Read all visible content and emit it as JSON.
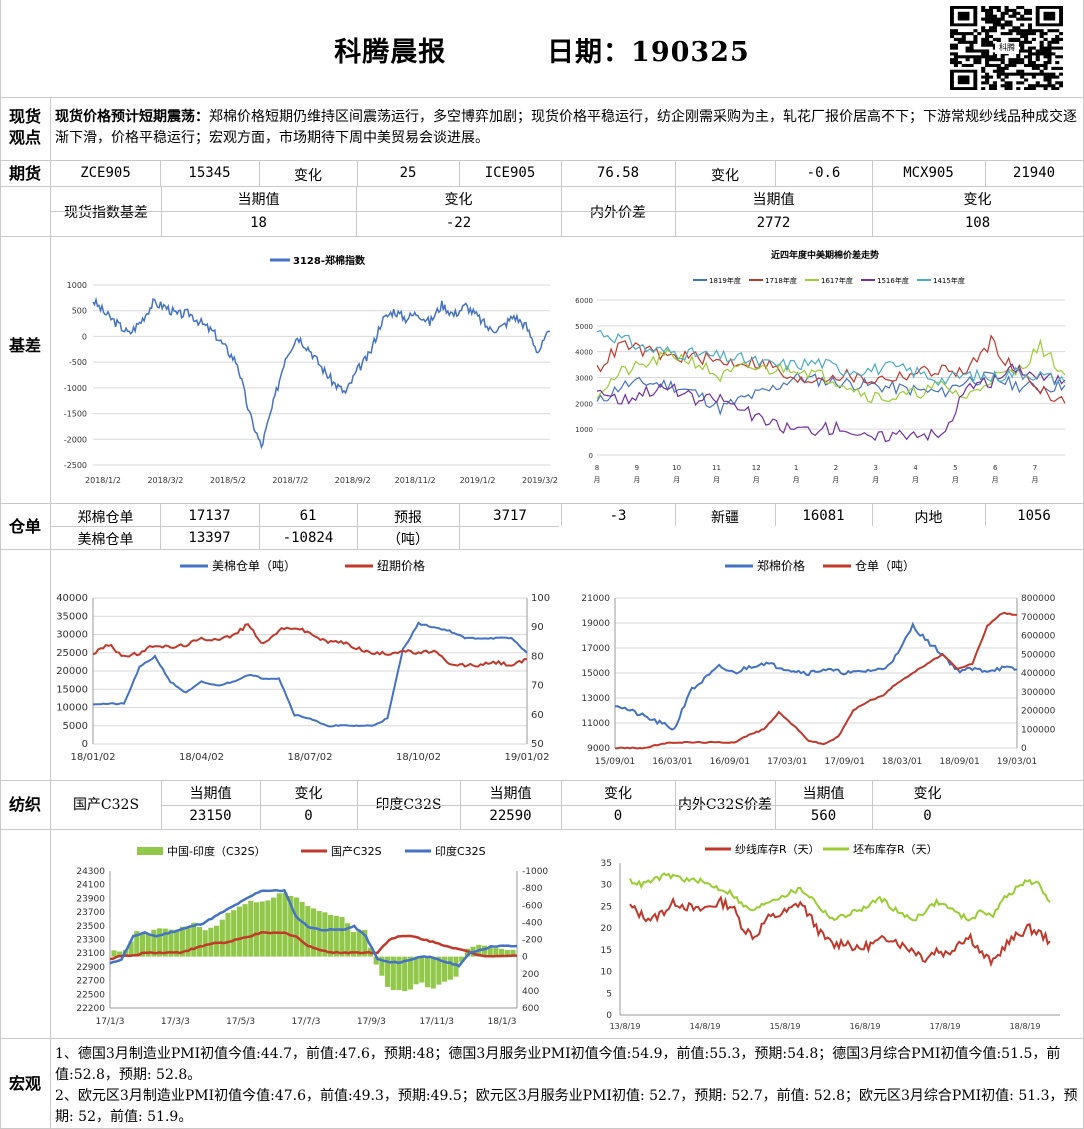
{
  "header": {
    "title": "科腾晨报",
    "date_label": "日期：190325",
    "qr_logo_text": "科腾"
  },
  "spot": {
    "section_label": "现货\n观点",
    "headline": "现货价格预计短期震荡：",
    "body": "郑棉价格短期仍维持区间震荡运行，多空博弈加剧；现货价格平稳运行，纺企刚需采购为主，轧花厂报价居高不下；下游常规纱线品种成交逐渐下滑，价格平稳运行；宏观方面，市场期待下周中美贸易会谈进展。"
  },
  "futures": {
    "section_label": "期货",
    "row": [
      "ZCE905",
      "15345",
      "变化",
      "25",
      "ICE905",
      "76.58",
      "变化",
      "-0.6",
      "MCX905",
      "21940"
    ]
  },
  "basis": {
    "section_label": "基差",
    "spot_index_label": "现货指数基差",
    "current_label": "当期值",
    "change_label": "变化",
    "spot_current": "18",
    "spot_change": "-22",
    "in_out_label": "内外价差",
    "io_current_label": "当期值",
    "io_change_label": "变化",
    "io_current": "2772",
    "io_change": "108"
  },
  "warehouse": {
    "section_label": "仓单",
    "zce_label": "郑棉仓单",
    "zce_value": "17137",
    "zce_change": "61",
    "forecast_label": "预报",
    "forecast_value": "3717",
    "forecast_change": "-3",
    "xinjiang_label": "新疆",
    "xinjiang_value": "16081",
    "inland_label": "内地",
    "inland_value": "1056",
    "us_label": "美棉仓单",
    "us_value": "13397",
    "us_change": "-10824",
    "unit_label": "（吨）"
  },
  "textile": {
    "section_label": "纺织",
    "domestic_label": "国产C32S",
    "current_label": "当期值",
    "change_label": "变化",
    "domestic_value": "23150",
    "domestic_change": "0",
    "india_label": "印度C32S",
    "india_value": "22590",
    "india_change": "0",
    "spread_label": "内外C32S价差",
    "spread_value": "560",
    "spread_change": "0"
  },
  "macro": {
    "section_label": "宏观",
    "line1": "1、德国3月制造业PMI初值今值:44.7，前值:47.6，预期:48；德国3月服务业PMI初值今值:54.9，前值:55.3，预期:54.8；德国3月综合PMI初值今值:51.5，前值:52.8，预期: 52.8。",
    "line2": "2、欧元区3月制造业PMI初值今值:47.6，前值:49.3，预期:49.5；欧元区3月服务业PMI初值: 52.7，预期: 52.7，前值: 52.8；欧元区3月综合PMI初值: 51.3，预期: 52，前值: 51.9。"
  },
  "colors": {
    "blue": "#4472c4",
    "red": "#c0392b",
    "green": "#9acd32",
    "purple": "#7030a0",
    "cyan": "#4bacc6",
    "grid": "#d9d9d9"
  },
  "chart_data": [
    {
      "type": "line",
      "title": "",
      "series": [
        {
          "name": "3128-郑棉指数",
          "values": [
            700,
            450,
            250,
            50,
            300,
            650,
            580,
            420,
            450,
            260,
            80,
            -220,
            -520,
            -1500,
            -2150,
            -1300,
            -400,
            0,
            -250,
            -600,
            -900,
            -1100,
            -650,
            -350,
            300,
            500,
            350,
            460,
            270,
            620,
            420,
            600,
            380,
            130,
            180,
            400,
            200,
            -300,
            100
          ]
        }
      ],
      "x_tick_labels": [
        "2018/1/2",
        "2018/3/2",
        "2018/5/2",
        "2018/7/2",
        "2018/9/2",
        "2018/11/2",
        "2019/1/2",
        "2019/3/2"
      ],
      "ylim": [
        -2500,
        1000
      ],
      "y_ticks": [
        "1000",
        "500",
        "0",
        "-500",
        "-1000",
        "-1500",
        "-2000",
        "-2500"
      ],
      "legend": "top-center",
      "legend_text": "3128-郑棉指数"
    },
    {
      "type": "line",
      "title": "近四年度中美期棉价差走势",
      "series": [
        {
          "name": "1819年度",
          "values": [
            2000,
            2700,
            2800,
            2700,
            2400,
            1800,
            2200,
            2500,
            3000,
            2900,
            2800,
            2700,
            2600,
            2500,
            2400,
            2900,
            3000,
            2700,
            2600,
            2700
          ]
        },
        {
          "name": "1718年度",
          "values": [
            3300,
            4300,
            4000,
            3800,
            3800,
            3600,
            3600,
            3500,
            2800,
            3000,
            3100,
            2900,
            3000,
            3200,
            3300,
            3200,
            4400,
            3200,
            2600,
            2000
          ]
        },
        {
          "name": "1617年度",
          "values": [
            2400,
            3200,
            3500,
            3900,
            3600,
            3000,
            3400,
            3300,
            3400,
            3100,
            2800,
            2300,
            2200,
            2400,
            2700,
            2200,
            3000,
            3200,
            4200,
            3100
          ]
        },
        {
          "name": "1516年度",
          "values": [
            2600,
            2100,
            2500,
            2600,
            2100,
            2200,
            1700,
            1200,
            1000,
            1000,
            1100,
            600,
            800,
            900,
            700,
            2600,
            2800,
            3400,
            3000,
            2900
          ]
        },
        {
          "name": "1415年度",
          "values": [
            4800,
            4500,
            4100,
            4000,
            3900,
            3800,
            3700,
            3500,
            3500,
            3600,
            3300,
            3300,
            3400,
            3200,
            2900,
            3100,
            3000,
            3200,
            3100,
            2800
          ]
        }
      ],
      "x_tick_labels": [
        "8\n月",
        "9\n月",
        "10\n月",
        "11\n月",
        "12\n月",
        "1\n月",
        "2\n月",
        "3\n月",
        "4\n月",
        "5\n月",
        "6\n月",
        "7\n月"
      ],
      "ylim": [
        0,
        6000
      ],
      "y_ticks": [
        "6000",
        "5000",
        "4000",
        "3000",
        "2000",
        "1000",
        "0"
      ],
      "legend": "top"
    },
    {
      "type": "line",
      "title": "",
      "series": [
        {
          "name": "美棉仓单（吨）",
          "axis": "left",
          "values": [
            11000,
            11000,
            11000,
            21000,
            24000,
            17000,
            14000,
            17000,
            16000,
            17000,
            19000,
            18000,
            18000,
            8000,
            7000,
            5000,
            5000,
            5000,
            5000,
            7000,
            26000,
            33000,
            32000,
            31000,
            29000,
            29000,
            29000,
            29000,
            25000
          ]
        },
        {
          "name": "纽期价格",
          "axis": "right",
          "values": [
            81,
            84,
            80,
            81,
            84,
            83,
            84,
            86,
            86,
            87,
            91,
            84,
            89,
            90,
            88,
            85,
            85,
            83,
            81,
            81,
            82,
            81,
            82,
            77,
            77,
            77,
            78,
            77,
            79
          ]
        }
      ],
      "x_tick_labels": [
        "18/01/02",
        "18/04/02",
        "18/07/02",
        "18/10/02",
        "19/01/02"
      ],
      "ylim": [
        0,
        40000
      ],
      "y2lim": [
        50,
        100
      ],
      "y_ticks": [
        "40000",
        "35000",
        "30000",
        "25000",
        "20000",
        "15000",
        "10000",
        "5000",
        "0"
      ],
      "y2_ticks": [
        "100",
        "90",
        "80",
        "70",
        "60",
        "50"
      ],
      "legend": "top"
    },
    {
      "type": "line",
      "title": "",
      "series": [
        {
          "name": "郑棉价格",
          "axis": "left",
          "values": [
            12500,
            12000,
            11500,
            11000,
            10500,
            13500,
            14500,
            15500,
            15000,
            15500,
            15800,
            15500,
            15200,
            15000,
            15300,
            15100,
            15000,
            15200,
            15300,
            16500,
            18800,
            17500,
            16500,
            15200,
            15300,
            15200,
            15400,
            15300
          ]
        },
        {
          "name": "仓单（吨）",
          "axis": "right",
          "values": [
            0,
            0,
            0,
            20000,
            30000,
            30000,
            30000,
            30000,
            30000,
            70000,
            100000,
            190000,
            120000,
            40000,
            20000,
            60000,
            200000,
            250000,
            280000,
            350000,
            400000,
            450000,
            500000,
            420000,
            450000,
            650000,
            720000,
            710000
          ]
        }
      ],
      "x_tick_labels": [
        "15/09/01",
        "16/03/01",
        "16/09/01",
        "17/03/01",
        "17/09/01",
        "18/03/01",
        "18/09/01",
        "19/03/01"
      ],
      "ylim": [
        9000,
        21000
      ],
      "y2lim": [
        0,
        800000
      ],
      "y_ticks": [
        "21000",
        "19000",
        "17000",
        "15000",
        "13000",
        "11000",
        "9000"
      ],
      "y2_ticks": [
        "800000",
        "700000",
        "600000",
        "500000",
        "400000",
        "300000",
        "200000",
        "100000",
        "0"
      ],
      "legend": "top"
    },
    {
      "type": "bar",
      "title": "",
      "series": [
        {
          "name": "中国-印度（C32S）",
          "axis": "right",
          "values": [
            -70,
            -80,
            -300,
            -250,
            -350,
            -300,
            -350,
            -380,
            -320,
            -350,
            -500,
            -600,
            -650,
            -650,
            -700,
            -750,
            -700,
            -600,
            -550,
            -500,
            -450,
            -300,
            -300,
            100,
            350,
            400,
            380,
            300,
            380,
            300,
            250,
            -100,
            -150,
            -120,
            -100,
            -80
          ]
        },
        {
          "name": "国产C32S",
          "axis": "left",
          "values": [
            22950,
            23000,
            23000,
            23050,
            23050,
            23050,
            23050,
            23100,
            23150,
            23200,
            23200,
            23250,
            23300,
            23350,
            23350,
            23350,
            23300,
            23150,
            23100,
            23050,
            23050,
            23050,
            23050,
            23050,
            23250,
            23300,
            23300,
            23250,
            23200,
            23150,
            23100,
            23050,
            23000,
            23000,
            23000,
            23000
          ]
        },
        {
          "name": "印度C32S",
          "axis": "left",
          "values": [
            22880,
            22950,
            23300,
            23350,
            23300,
            23350,
            23400,
            23450,
            23500,
            23600,
            23700,
            23800,
            23900,
            24000,
            24000,
            24000,
            23600,
            23450,
            23400,
            23400,
            23400,
            23450,
            23300,
            22950,
            22900,
            22900,
            22950,
            23000,
            22950,
            22900,
            22850,
            23050,
            23100,
            23150,
            23150,
            23150
          ]
        }
      ],
      "x_tick_labels": [
        "17/1/3",
        "17/3/3",
        "17/5/3",
        "17/7/3",
        "17/9/3",
        "17/11/3",
        "18/1/3"
      ],
      "ylim": [
        22200,
        24300
      ],
      "y2lim": [
        -1000,
        600
      ],
      "y_ticks": [
        "24300",
        "24100",
        "23900",
        "23700",
        "23500",
        "23300",
        "23100",
        "22900",
        "22700",
        "22500",
        "22200"
      ],
      "y2_ticks": [
        "-1000",
        "-800",
        "-600",
        "-400",
        "-200",
        "0",
        "200",
        "400",
        "600"
      ],
      "legend": "top"
    },
    {
      "type": "line",
      "title": "",
      "series": [
        {
          "name": "纱线库存R（天）",
          "values": [
            25,
            23,
            22,
            24,
            26,
            25,
            24,
            25,
            26,
            25,
            20,
            18,
            22,
            23,
            24,
            26,
            22,
            18,
            16,
            17,
            15,
            16,
            17,
            18,
            16,
            15,
            13,
            15,
            14,
            17,
            18,
            14,
            12,
            16,
            18,
            20,
            19,
            17
          ]
        },
        {
          "name": "坯布库存R（天）",
          "values": [
            31,
            30,
            31,
            32,
            32,
            31,
            31,
            30,
            29,
            28,
            25,
            24,
            26,
            27,
            28,
            29,
            27,
            24,
            22,
            23,
            24,
            25,
            27,
            25,
            23,
            22,
            24,
            26,
            25,
            23,
            22,
            24,
            23,
            27,
            29,
            31,
            30,
            26
          ]
        }
      ],
      "x_tick_labels": [
        "13/8/19",
        "14/8/19",
        "15/8/19",
        "16/8/19",
        "17/8/19",
        "18/8/19"
      ],
      "ylim": [
        0,
        35
      ],
      "y_ticks": [
        "35",
        "30",
        "25",
        "20",
        "15",
        "10",
        "5",
        "0"
      ],
      "legend": "top"
    }
  ]
}
